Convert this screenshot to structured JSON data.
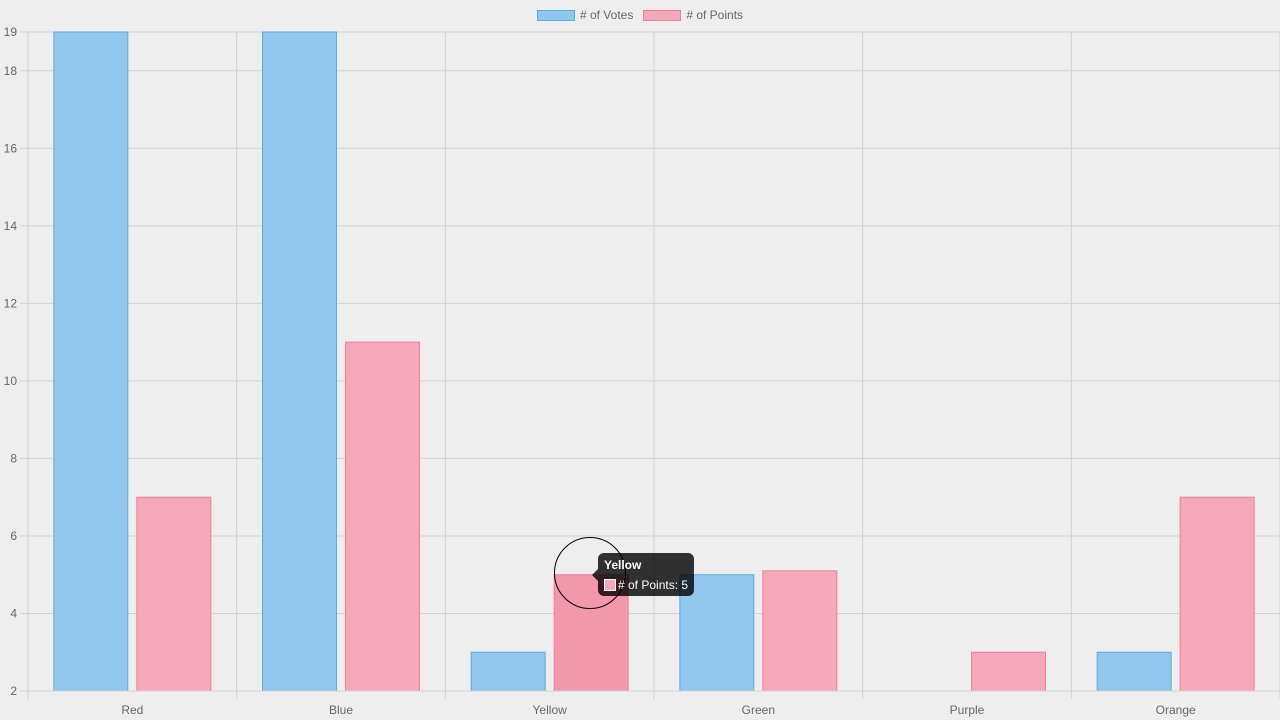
{
  "chart_data": {
    "type": "bar",
    "categories": [
      "Red",
      "Blue",
      "Yellow",
      "Green",
      "Purple",
      "Orange"
    ],
    "series": [
      {
        "name": "# of Votes",
        "values": [
          19,
          19,
          3,
          5,
          2,
          3
        ],
        "fill": "#91c6ed",
        "stroke": "#5aace6"
      },
      {
        "name": "# of Points",
        "values": [
          7,
          11,
          5,
          5.1,
          3,
          7
        ],
        "fill": "#f5a8b9",
        "stroke": "#ef7f97"
      }
    ],
    "ylim": [
      2,
      19
    ],
    "yticks": [
      "2",
      "4",
      "6",
      "8",
      "10",
      "12",
      "14",
      "16",
      "18",
      "19"
    ],
    "grid": true,
    "legend": "top-center",
    "hovered": {
      "category_index": 2,
      "series_index": 1
    }
  },
  "tooltip": {
    "title": "Yellow",
    "label": "# of Points: 5",
    "swatch_color": "#f5a8b9"
  },
  "colors": {
    "background": "#eeeeee",
    "grid": "#d2d2d2",
    "axis_text": "#666666",
    "hover_fill": "#f398ac"
  }
}
